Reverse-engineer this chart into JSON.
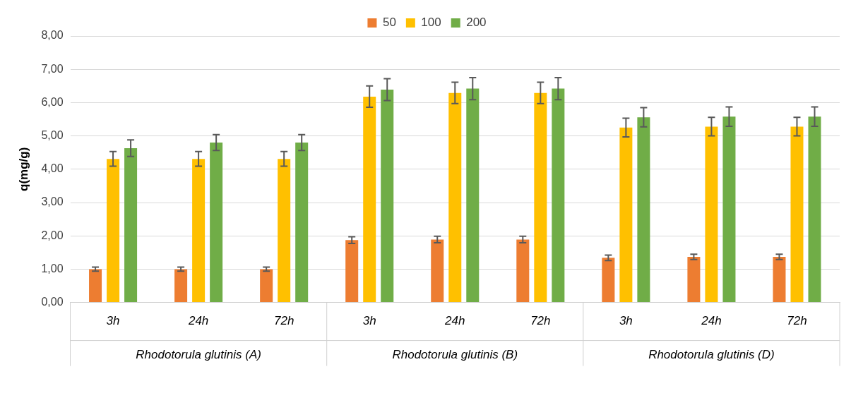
{
  "chart_data": {
    "type": "bar",
    "ylabel": "q(mg/g)",
    "categories": [
      "3h",
      "24h",
      "72h",
      "3h",
      "24h",
      "72h",
      "3h",
      "24h",
      "72h"
    ],
    "annotations": [
      "Rhodotorula glutinis (A)",
      "Rhodotorula glutinis (B)",
      "Rhodotorula glutinis (D)"
    ],
    "series": [
      {
        "name": "50",
        "color": "#ed7d31",
        "values": [
          1.0,
          1.0,
          1.0,
          1.87,
          1.89,
          1.89,
          1.34,
          1.37,
          1.37
        ],
        "errors": [
          0.06,
          0.06,
          0.06,
          0.1,
          0.1,
          0.1,
          0.08,
          0.08,
          0.08
        ]
      },
      {
        "name": "100",
        "color": "#ffc000",
        "values": [
          4.31,
          4.31,
          4.31,
          6.18,
          6.29,
          6.29,
          5.25,
          5.28,
          5.28
        ],
        "errors": [
          0.22,
          0.22,
          0.22,
          0.32,
          0.32,
          0.32,
          0.28,
          0.28,
          0.28
        ]
      },
      {
        "name": "200",
        "color": "#70ad47",
        "values": [
          4.63,
          4.8,
          4.8,
          6.39,
          6.42,
          6.42,
          5.56,
          5.58,
          5.58
        ],
        "errors": [
          0.25,
          0.24,
          0.24,
          0.33,
          0.33,
          0.33,
          0.29,
          0.29,
          0.29
        ]
      }
    ],
    "ylim": [
      0,
      8
    ],
    "yticks": [
      {
        "value": 0,
        "label": "0,00"
      },
      {
        "value": 1,
        "label": "1,00"
      },
      {
        "value": 2,
        "label": "2,00"
      },
      {
        "value": 3,
        "label": "3,00"
      },
      {
        "value": 4,
        "label": "4,00"
      },
      {
        "value": 5,
        "label": "5,00"
      },
      {
        "value": 6,
        "label": "6,00"
      },
      {
        "value": 7,
        "label": "7,00"
      },
      {
        "value": 8,
        "label": "8,00"
      }
    ],
    "grid": "y",
    "legend": "top"
  }
}
